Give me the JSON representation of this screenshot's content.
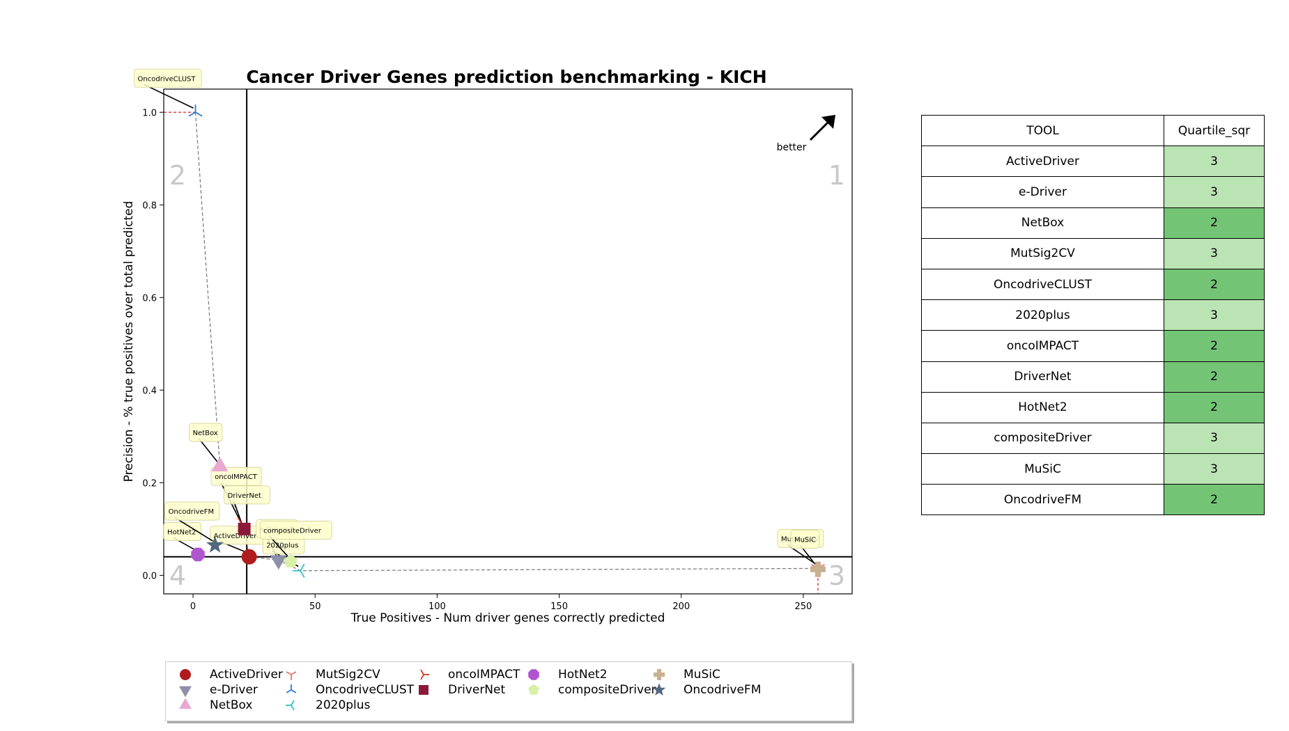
{
  "chart_data": {
    "type": "scatter",
    "title": "Cancer Driver Genes prediction benchmarking - KICH",
    "xlabel": "True Positives - Num driver genes correctly predicted",
    "ylabel": "Precision - % true positives over total predicted",
    "xlim": [
      -12,
      270
    ],
    "ylim": [
      -0.04,
      1.05
    ],
    "xticks": [
      0,
      50,
      100,
      150,
      200,
      250
    ],
    "yticks": [
      0.0,
      0.2,
      0.4,
      0.6,
      0.8,
      1.0
    ],
    "xtick_labels": [
      "0",
      "50",
      "100",
      "150",
      "200",
      "250"
    ],
    "ytick_labels": [
      "0.0",
      "0.2",
      "0.4",
      "0.6",
      "0.8",
      "1.0"
    ],
    "grid": false,
    "quartile_lines": {
      "x": 22,
      "y": 0.04
    },
    "quadrant_labels": [
      "1",
      "2",
      "3",
      "4"
    ],
    "better_label": "better",
    "points": [
      {
        "name": "ActiveDriver",
        "x": 23,
        "y": 0.04,
        "color": "#b01c1c",
        "marker": "circle"
      },
      {
        "name": "e-Driver",
        "x": 35,
        "y": 0.033,
        "color": "#8e90a8",
        "marker": "triangle-down"
      },
      {
        "name": "NetBox",
        "x": 11,
        "y": 0.235,
        "color": "#e8a8d0",
        "marker": "triangle-up"
      },
      {
        "name": "MutSig2CV",
        "x": 256,
        "y": 0.015,
        "color": "#e8706a",
        "marker": "tri-down"
      },
      {
        "name": "OncodriveCLUST",
        "x": 1,
        "y": 1.0,
        "color": "#2a78d8",
        "marker": "tri-up"
      },
      {
        "name": "2020plus",
        "x": 44,
        "y": 0.01,
        "color": "#30c0c8",
        "marker": "tri-left"
      },
      {
        "name": "oncoIMPACT",
        "x": 20,
        "y": 0.11,
        "color": "#d83a1e",
        "marker": "tri-right"
      },
      {
        "name": "DriverNet",
        "x": 21,
        "y": 0.1,
        "color": "#8b1a3a",
        "marker": "square"
      },
      {
        "name": "HotNet2",
        "x": 2,
        "y": 0.045,
        "color": "#b055d0",
        "marker": "octagon"
      },
      {
        "name": "compositeDriver",
        "x": 40,
        "y": 0.03,
        "color": "#d8f0a8",
        "marker": "pentagon"
      },
      {
        "name": "MuSiC",
        "x": 256,
        "y": 0.013,
        "color": "#c8b090",
        "marker": "plus"
      },
      {
        "name": "OncodriveFM",
        "x": 9,
        "y": 0.065,
        "color": "#52687e",
        "marker": "star"
      }
    ],
    "pareto_front": [
      [
        1,
        1.0
      ],
      [
        11,
        0.235
      ],
      [
        20,
        0.11
      ],
      [
        21,
        0.1
      ],
      [
        23,
        0.04
      ],
      [
        35,
        0.033
      ],
      [
        44,
        0.01
      ],
      [
        256,
        0.015
      ]
    ]
  },
  "table": {
    "headers": [
      "TOOL",
      "Quartile_sqr"
    ],
    "rows": [
      {
        "tool": "ActiveDriver",
        "quartile": "3"
      },
      {
        "tool": "e-Driver",
        "quartile": "3"
      },
      {
        "tool": "NetBox",
        "quartile": "2"
      },
      {
        "tool": "MutSig2CV",
        "quartile": "3"
      },
      {
        "tool": "OncodriveCLUST",
        "quartile": "2"
      },
      {
        "tool": "2020plus",
        "quartile": "3"
      },
      {
        "tool": "oncoIMPACT",
        "quartile": "2"
      },
      {
        "tool": "DriverNet",
        "quartile": "2"
      },
      {
        "tool": "HotNet2",
        "quartile": "2"
      },
      {
        "tool": "compositeDriver",
        "quartile": "3"
      },
      {
        "tool": "MuSiC",
        "quartile": "3"
      },
      {
        "tool": "OncodriveFM",
        "quartile": "2"
      }
    ],
    "quartile_colors": {
      "2": "#74c476",
      "3": "#bae4b3"
    }
  }
}
